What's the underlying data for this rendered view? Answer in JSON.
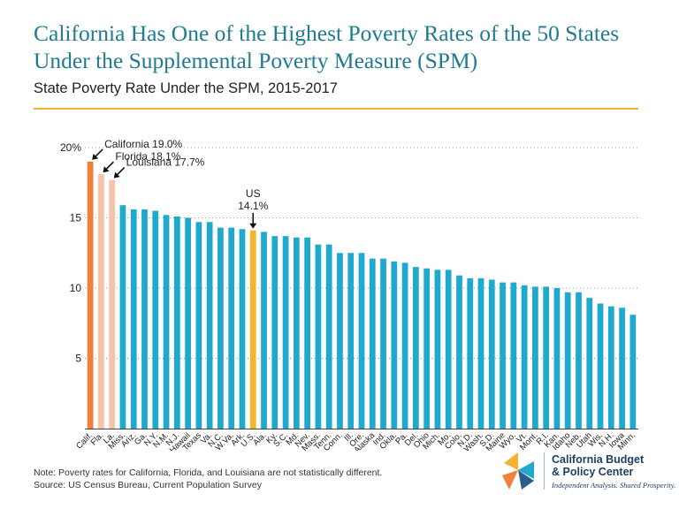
{
  "header": {
    "title": "California Has One of the Highest Poverty Rates of the 50 States Under the Supplemental Poverty Measure (SPM)",
    "subtitle": "State Poverty Rate Under the SPM, 2015-2017"
  },
  "footer": {
    "note": "Note: Poverty rates for California, Florida, and Louisiana are not statistically different.",
    "source": "Source: US Census Bureau, Current Population Survey"
  },
  "logo": {
    "name": "California Budget\n& Policy Center",
    "tagline": "Independent Analysis. Shared Prosperity."
  },
  "colors": {
    "title": "#1f7b8f",
    "rule": "#f5b335",
    "default_bar": "#1fa9cf",
    "california_bar": "#f2803a",
    "highlight_bar": "#f7c2a6",
    "us_bar": "#f6b330"
  },
  "chart_data": {
    "type": "bar",
    "title": "State Poverty Rate Under the SPM, 2015-2017",
    "xlabel": "",
    "ylabel": "",
    "ylim": [
      0,
      20
    ],
    "yticks": [
      5,
      10,
      15,
      20
    ],
    "ytick_labels": [
      "5",
      "10",
      "15",
      "20%"
    ],
    "grid": "horizontal dotted",
    "categories": [
      "Calif.",
      "Fla.",
      "La.",
      "Miss.",
      "Ariz.",
      "Ga.",
      "N.Y.",
      "N.M.",
      "N.J.",
      "Hawaii",
      "Texas",
      "Va.",
      "N.C.",
      "W.Va.",
      "Ark.",
      "U.S.",
      "Ala.",
      "Ky.",
      "S.C.",
      "Md.",
      "Nev.",
      "Mass.",
      "Tenn.",
      "Conn.",
      "Ill.",
      "Ore.",
      "Alaska",
      "Ind.",
      "Okla.",
      "Pa.",
      "Del.",
      "Ohio",
      "Mich.",
      "Mo.",
      "Colo.",
      "N.D.",
      "Wash.",
      "S.D.",
      "Maine",
      "Wyo.",
      "Vt.",
      "Mont.",
      "R.I.",
      "Kan.",
      "Idaho",
      "Neb.",
      "Utah",
      "Wis.",
      "N.H.",
      "Iowa",
      "Minn."
    ],
    "values": [
      19.0,
      18.1,
      17.7,
      15.9,
      15.6,
      15.6,
      15.5,
      15.2,
      15.1,
      15.0,
      14.7,
      14.7,
      14.3,
      14.3,
      14.2,
      14.1,
      14.0,
      13.7,
      13.7,
      13.6,
      13.6,
      13.1,
      13.1,
      12.5,
      12.5,
      12.5,
      12.1,
      12.1,
      11.9,
      11.8,
      11.5,
      11.4,
      11.3,
      11.3,
      10.9,
      10.7,
      10.7,
      10.6,
      10.4,
      10.4,
      10.2,
      10.1,
      10.1,
      10.0,
      9.7,
      9.7,
      9.3,
      8.9,
      8.7,
      8.6,
      8.1
    ],
    "highlight": {
      "Calif.": "california_bar",
      "Fla.": "highlight_bar",
      "La.": "highlight_bar",
      "U.S.": "us_bar"
    },
    "annotations": [
      {
        "category": "Calif.",
        "lines": [
          "California 19.0%"
        ],
        "style": "diag"
      },
      {
        "category": "Fla.",
        "lines": [
          "Florida 18.1%"
        ],
        "style": "diag"
      },
      {
        "category": "La.",
        "lines": [
          "Louisiana 17.7%"
        ],
        "style": "diag"
      },
      {
        "category": "U.S.",
        "lines": [
          "US",
          "14.1%"
        ],
        "style": "vert"
      }
    ]
  }
}
